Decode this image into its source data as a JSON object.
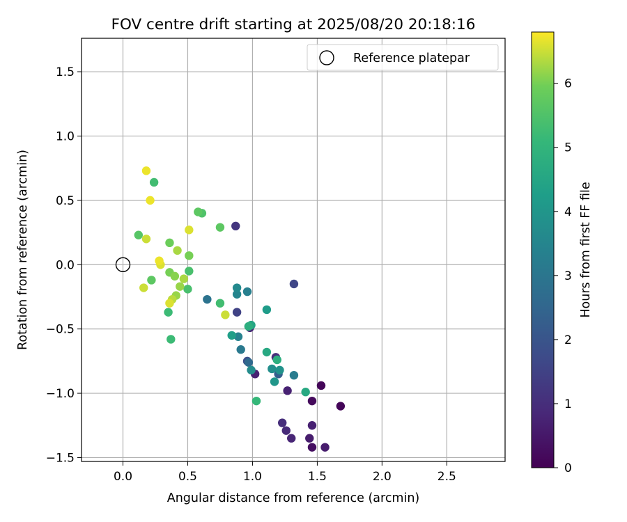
{
  "chart_data": {
    "type": "scatter",
    "title": "FOV centre drift starting at 2025/08/20 20:18:16",
    "xlabel": "Angular distance from reference (arcmin)",
    "ylabel": "Rotation from reference (arcmin)",
    "xlim": [
      -0.32,
      2.95
    ],
    "ylim": [
      -1.53,
      1.76
    ],
    "x_ticks": [
      0.0,
      0.5,
      1.0,
      1.5,
      2.0,
      2.5
    ],
    "x_tick_labels": [
      "0.0",
      "0.5",
      "1.0",
      "1.5",
      "2.0",
      "2.5"
    ],
    "y_ticks": [
      1.5,
      1.0,
      0.5,
      0.0,
      -0.5,
      -1.0,
      -1.5
    ],
    "y_tick_labels": [
      "1.5",
      "1.0",
      "0.5",
      "0.0",
      "−0.5",
      "−1.0",
      "−1.5"
    ],
    "grid": true,
    "legend": {
      "position": "top-right",
      "entries": [
        "Reference platepar"
      ]
    },
    "reference_point": {
      "x": 0.0,
      "y": 0.0
    },
    "colormap": "viridis",
    "colorbar": {
      "label": "Hours from first FF file",
      "range": [
        0,
        6.8
      ],
      "ticks": [
        0,
        1,
        2,
        3,
        4,
        5,
        6
      ],
      "tick_labels": [
        "0",
        "1",
        "2",
        "3",
        "4",
        "5",
        "6"
      ]
    },
    "points": [
      {
        "x": 1.68,
        "y": -1.1,
        "c": 0.1
      },
      {
        "x": 1.53,
        "y": -0.94,
        "c": 0.1
      },
      {
        "x": 1.46,
        "y": -1.06,
        "c": 0.2
      },
      {
        "x": 1.46,
        "y": -1.42,
        "c": 0.3
      },
      {
        "x": 1.56,
        "y": -1.42,
        "c": 0.6
      },
      {
        "x": 1.44,
        "y": -1.35,
        "c": 0.6
      },
      {
        "x": 1.46,
        "y": -1.25,
        "c": 0.7
      },
      {
        "x": 1.3,
        "y": -1.35,
        "c": 0.8
      },
      {
        "x": 1.26,
        "y": -1.29,
        "c": 0.9
      },
      {
        "x": 1.23,
        "y": -1.23,
        "c": 1.0
      },
      {
        "x": 1.27,
        "y": -0.98,
        "c": 0.7
      },
      {
        "x": 1.02,
        "y": -0.85,
        "c": 0.7
      },
      {
        "x": 0.98,
        "y": -0.49,
        "c": 0.8
      },
      {
        "x": 1.18,
        "y": -0.72,
        "c": 1.0
      },
      {
        "x": 0.87,
        "y": 0.3,
        "c": 1.2
      },
      {
        "x": 0.88,
        "y": -0.37,
        "c": 1.5
      },
      {
        "x": 1.32,
        "y": -0.15,
        "c": 1.6
      },
      {
        "x": 0.96,
        "y": -0.75,
        "c": 1.8
      },
      {
        "x": 1.2,
        "y": -0.85,
        "c": 2.3
      },
      {
        "x": 0.97,
        "y": -0.76,
        "c": 2.6
      },
      {
        "x": 0.65,
        "y": -0.27,
        "c": 2.9
      },
      {
        "x": 0.91,
        "y": -0.66,
        "c": 3.1
      },
      {
        "x": 1.32,
        "y": -0.86,
        "c": 3.2
      },
      {
        "x": 0.96,
        "y": -0.21,
        "c": 3.3
      },
      {
        "x": 0.89,
        "y": -0.56,
        "c": 3.4
      },
      {
        "x": 0.88,
        "y": -0.23,
        "c": 3.5
      },
      {
        "x": 0.88,
        "y": -0.18,
        "c": 3.6
      },
      {
        "x": 0.99,
        "y": -0.82,
        "c": 3.7
      },
      {
        "x": 1.15,
        "y": -0.81,
        "c": 3.8
      },
      {
        "x": 1.21,
        "y": -0.82,
        "c": 3.9
      },
      {
        "x": 1.17,
        "y": -0.91,
        "c": 4.0
      },
      {
        "x": 1.11,
        "y": -0.35,
        "c": 4.2
      },
      {
        "x": 0.84,
        "y": -0.55,
        "c": 4.3
      },
      {
        "x": 0.99,
        "y": -0.47,
        "c": 4.5
      },
      {
        "x": 1.11,
        "y": -0.68,
        "c": 4.6
      },
      {
        "x": 1.41,
        "y": -0.99,
        "c": 4.6
      },
      {
        "x": 1.19,
        "y": -0.74,
        "c": 4.8
      },
      {
        "x": 0.97,
        "y": -0.48,
        "c": 4.8
      },
      {
        "x": 1.03,
        "y": -1.06,
        "c": 5.1
      },
      {
        "x": 0.37,
        "y": -0.58,
        "c": 5.2
      },
      {
        "x": 0.35,
        "y": -0.37,
        "c": 5.2
      },
      {
        "x": 0.75,
        "y": -0.3,
        "c": 5.3
      },
      {
        "x": 0.24,
        "y": 0.64,
        "c": 5.3
      },
      {
        "x": 0.5,
        "y": -0.19,
        "c": 5.4
      },
      {
        "x": 0.51,
        "y": -0.05,
        "c": 5.4
      },
      {
        "x": 0.61,
        "y": 0.4,
        "c": 5.5
      },
      {
        "x": 0.12,
        "y": 0.23,
        "c": 5.6
      },
      {
        "x": 0.75,
        "y": 0.29,
        "c": 5.7
      },
      {
        "x": 0.58,
        "y": 0.41,
        "c": 5.7
      },
      {
        "x": 0.22,
        "y": -0.12,
        "c": 5.7
      },
      {
        "x": 0.36,
        "y": 0.17,
        "c": 5.9
      },
      {
        "x": 0.51,
        "y": 0.07,
        "c": 6.0
      },
      {
        "x": 0.36,
        "y": -0.06,
        "c": 6.0
      },
      {
        "x": 0.4,
        "y": -0.09,
        "c": 6.1
      },
      {
        "x": 0.41,
        "y": -0.24,
        "c": 6.2
      },
      {
        "x": 0.44,
        "y": -0.17,
        "c": 6.2
      },
      {
        "x": 0.47,
        "y": -0.11,
        "c": 6.3
      },
      {
        "x": 0.42,
        "y": 0.11,
        "c": 6.3
      },
      {
        "x": 0.38,
        "y": -0.27,
        "c": 6.4
      },
      {
        "x": 0.16,
        "y": -0.18,
        "c": 6.5
      },
      {
        "x": 0.79,
        "y": -0.39,
        "c": 6.5
      },
      {
        "x": 0.18,
        "y": 0.2,
        "c": 6.5
      },
      {
        "x": 0.36,
        "y": -0.3,
        "c": 6.6
      },
      {
        "x": 0.51,
        "y": 0.27,
        "c": 6.6
      },
      {
        "x": 0.29,
        "y": 0.0,
        "c": 6.6
      },
      {
        "x": 0.21,
        "y": 0.5,
        "c": 6.7
      },
      {
        "x": 0.28,
        "y": 0.03,
        "c": 6.7
      },
      {
        "x": 0.18,
        "y": 0.73,
        "c": 6.7
      }
    ]
  }
}
